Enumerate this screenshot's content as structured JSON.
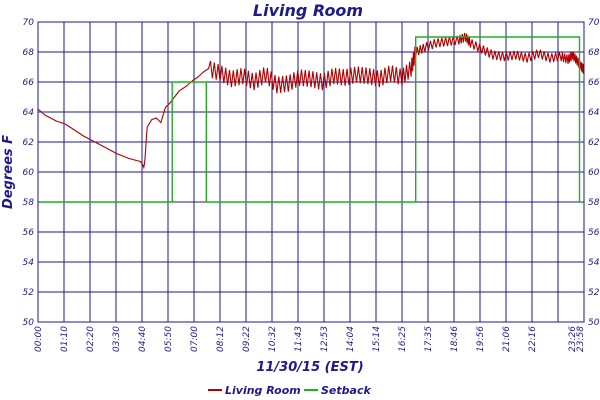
{
  "chart_data": {
    "type": "line",
    "title": "Living Room",
    "xlabel": "11/30/15 (EST)",
    "ylabel": "Degrees F",
    "ylim": [
      50,
      70
    ],
    "yticks": [
      50,
      52,
      54,
      56,
      58,
      60,
      62,
      64,
      66,
      68,
      70
    ],
    "xlim_hours": [
      0,
      24
    ],
    "xticks": [
      "00:00",
      "01:10",
      "02:20",
      "03:30",
      "04:40",
      "05:50",
      "07:00",
      "08:12",
      "09:22",
      "10:32",
      "11:43",
      "12:53",
      "14:04",
      "15:14",
      "16:25",
      "17:35",
      "18:46",
      "19:56",
      "21:06",
      "22:16",
      "23:26",
      "23:58"
    ],
    "grid": true,
    "legend_position": "bottom-center",
    "series": [
      {
        "name": "Living Room",
        "color": "#b00000",
        "x_hours": [
          0.0,
          0.3,
          0.8,
          1.2,
          1.6,
          2.0,
          2.5,
          3.0,
          3.5,
          4.0,
          4.5,
          4.6,
          4.65,
          4.7,
          4.75,
          4.8,
          5.0,
          5.2,
          5.4,
          5.5,
          5.6,
          5.8,
          6.0,
          6.2,
          6.5,
          6.8,
          7.0,
          7.3,
          7.5,
          8.0,
          8.5,
          9.0,
          9.5,
          10.0,
          10.5,
          11.0,
          11.5,
          12.0,
          12.5,
          13.0,
          13.5,
          14.0,
          14.5,
          15.0,
          15.5,
          16.0,
          16.4,
          16.6,
          17.0,
          17.5,
          18.0,
          18.5,
          18.8,
          19.0,
          19.5,
          20.0,
          20.5,
          21.0,
          21.5,
          22.0,
          22.5,
          23.0,
          23.3,
          23.5,
          23.7,
          23.9,
          24.0
        ],
        "values": [
          64.2,
          63.8,
          63.4,
          63.2,
          62.8,
          62.4,
          62.0,
          61.6,
          61.2,
          60.9,
          60.7,
          60.5,
          60.3,
          60.8,
          62.0,
          63.0,
          63.5,
          63.6,
          63.3,
          63.8,
          64.3,
          64.6,
          65.0,
          65.4,
          65.7,
          66.1,
          66.3,
          66.7,
          66.9,
          66.6,
          66.2,
          66.4,
          66.0,
          66.5,
          65.8,
          65.9,
          66.3,
          66.2,
          66.0,
          66.4,
          66.3,
          66.5,
          66.4,
          66.2,
          66.6,
          66.3,
          66.9,
          68.0,
          68.3,
          68.6,
          68.7,
          68.8,
          69.0,
          68.6,
          68.2,
          67.8,
          67.7,
          67.8,
          67.6,
          67.9,
          67.6,
          67.7,
          67.5,
          67.8,
          67.4,
          67.0,
          66.8
        ]
      },
      {
        "name": "Setback",
        "color": "#20b020",
        "x_hours": [
          0.0,
          5.9,
          5.9,
          7.4,
          7.4,
          16.6,
          16.6,
          23.8,
          23.8,
          24.0
        ],
        "values": [
          58,
          58,
          66,
          66,
          58,
          58,
          69,
          69,
          58,
          58
        ]
      }
    ]
  }
}
